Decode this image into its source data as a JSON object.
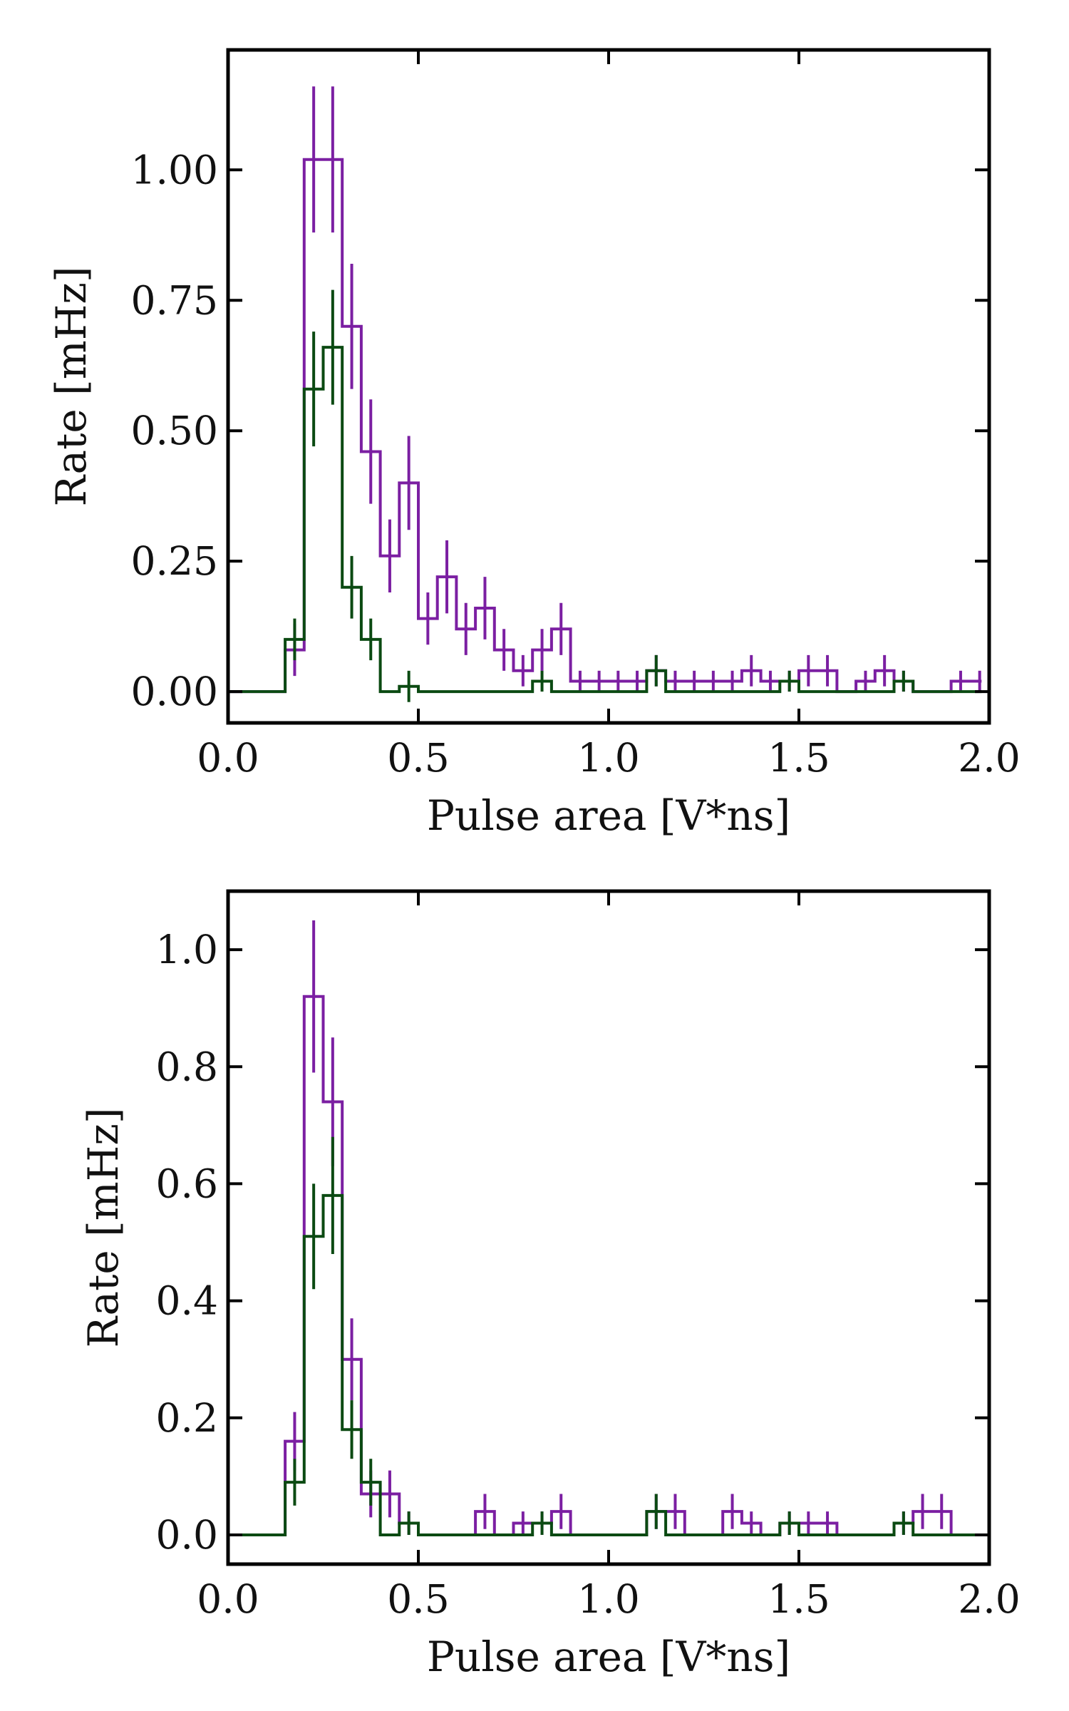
{
  "colors": {
    "purple": "#7b1fa2",
    "green": "#0b4a12",
    "frame": "#000000"
  },
  "chart_data": [
    {
      "type": "histogram-step",
      "title": "",
      "xlabel": "Pulse area [V*ns]",
      "ylabel": "Rate [mHz]",
      "xlim": [
        0.0,
        2.0
      ],
      "ylim": [
        -0.06,
        1.23
      ],
      "xticks": [
        0.0,
        0.5,
        1.0,
        1.5,
        2.0
      ],
      "xtick_labels": [
        "0.0",
        "0.5",
        "1.0",
        "1.5",
        "2.0"
      ],
      "yticks": [
        0.0,
        0.25,
        0.5,
        0.75,
        1.0
      ],
      "ytick_labels": [
        "0.00",
        "0.25",
        "0.50",
        "0.75",
        "1.00"
      ],
      "series": [
        {
          "name": "purple",
          "color": "#7b1fa2",
          "bins": [
            [
              0.0,
              0.15,
              0.0
            ],
            [
              0.15,
              0.2,
              0.08
            ],
            [
              0.2,
              0.3,
              1.02
            ],
            [
              0.3,
              0.35,
              0.7
            ],
            [
              0.35,
              0.4,
              0.46
            ],
            [
              0.4,
              0.45,
              0.26
            ],
            [
              0.45,
              0.5,
              0.4
            ],
            [
              0.5,
              0.55,
              0.14
            ],
            [
              0.55,
              0.6,
              0.22
            ],
            [
              0.6,
              0.65,
              0.12
            ],
            [
              0.65,
              0.7,
              0.16
            ],
            [
              0.7,
              0.75,
              0.08
            ],
            [
              0.75,
              0.8,
              0.04
            ],
            [
              0.8,
              0.85,
              0.08
            ],
            [
              0.85,
              0.9,
              0.12
            ],
            [
              0.9,
              1.1,
              0.02
            ],
            [
              1.1,
              1.15,
              0.04
            ],
            [
              1.15,
              1.35,
              0.02
            ],
            [
              1.35,
              1.4,
              0.04
            ],
            [
              1.4,
              1.45,
              0.02
            ],
            [
              1.45,
              1.5,
              0.02
            ],
            [
              1.5,
              1.6,
              0.04
            ],
            [
              1.6,
              1.65,
              0.0
            ],
            [
              1.65,
              1.7,
              0.02
            ],
            [
              1.7,
              1.75,
              0.04
            ],
            [
              1.75,
              1.8,
              0.02
            ],
            [
              1.8,
              1.9,
              0.0
            ],
            [
              1.9,
              1.98,
              0.02
            ]
          ],
          "errorbars": [
            [
              0.175,
              0.08,
              0.05
            ],
            [
              0.225,
              1.02,
              0.14
            ],
            [
              0.275,
              1.02,
              0.14
            ],
            [
              0.325,
              0.7,
              0.12
            ],
            [
              0.375,
              0.46,
              0.1
            ],
            [
              0.425,
              0.26,
              0.07
            ],
            [
              0.475,
              0.4,
              0.09
            ],
            [
              0.525,
              0.14,
              0.05
            ],
            [
              0.575,
              0.22,
              0.07
            ],
            [
              0.625,
              0.12,
              0.05
            ],
            [
              0.675,
              0.16,
              0.06
            ],
            [
              0.725,
              0.08,
              0.04
            ],
            [
              0.775,
              0.04,
              0.03
            ],
            [
              0.825,
              0.08,
              0.04
            ],
            [
              0.875,
              0.12,
              0.05
            ],
            [
              0.925,
              0.02,
              0.02
            ],
            [
              0.975,
              0.02,
              0.02
            ],
            [
              1.025,
              0.02,
              0.02
            ],
            [
              1.075,
              0.02,
              0.02
            ],
            [
              1.125,
              0.04,
              0.03
            ],
            [
              1.175,
              0.02,
              0.02
            ],
            [
              1.225,
              0.02,
              0.02
            ],
            [
              1.275,
              0.02,
              0.02
            ],
            [
              1.325,
              0.02,
              0.02
            ],
            [
              1.375,
              0.04,
              0.03
            ],
            [
              1.425,
              0.02,
              0.02
            ],
            [
              1.475,
              0.02,
              0.02
            ],
            [
              1.525,
              0.04,
              0.03
            ],
            [
              1.575,
              0.04,
              0.03
            ],
            [
              1.675,
              0.02,
              0.02
            ],
            [
              1.725,
              0.04,
              0.03
            ],
            [
              1.775,
              0.02,
              0.02
            ],
            [
              1.925,
              0.02,
              0.02
            ],
            [
              1.975,
              0.02,
              0.02
            ]
          ]
        },
        {
          "name": "green",
          "color": "#0b4a12",
          "bins": [
            [
              0.0,
              0.15,
              0.0
            ],
            [
              0.15,
              0.2,
              0.1
            ],
            [
              0.2,
              0.25,
              0.58
            ],
            [
              0.25,
              0.3,
              0.66
            ],
            [
              0.3,
              0.35,
              0.2
            ],
            [
              0.35,
              0.4,
              0.1
            ],
            [
              0.4,
              0.45,
              0.0
            ],
            [
              0.45,
              0.5,
              0.01
            ],
            [
              0.5,
              0.8,
              0.0
            ],
            [
              0.8,
              0.85,
              0.02
            ],
            [
              0.85,
              1.1,
              0.0
            ],
            [
              1.1,
              1.15,
              0.04
            ],
            [
              1.15,
              1.45,
              0.0
            ],
            [
              1.45,
              1.5,
              0.02
            ],
            [
              1.5,
              1.75,
              0.0
            ],
            [
              1.75,
              1.8,
              0.02
            ],
            [
              1.8,
              1.98,
              0.0
            ]
          ],
          "errorbars": [
            [
              0.175,
              0.1,
              0.04
            ],
            [
              0.225,
              0.58,
              0.11
            ],
            [
              0.275,
              0.66,
              0.11
            ],
            [
              0.325,
              0.2,
              0.06
            ],
            [
              0.375,
              0.1,
              0.04
            ],
            [
              0.475,
              0.01,
              0.03
            ],
            [
              0.825,
              0.02,
              0.02
            ],
            [
              1.125,
              0.04,
              0.03
            ],
            [
              1.475,
              0.02,
              0.02
            ],
            [
              1.775,
              0.02,
              0.02
            ]
          ]
        }
      ]
    },
    {
      "type": "histogram-step",
      "title": "",
      "xlabel": "Pulse area [V*ns]",
      "ylabel": "Rate [mHz]",
      "xlim": [
        0.0,
        2.0
      ],
      "ylim": [
        -0.05,
        1.1
      ],
      "xticks": [
        0.0,
        0.5,
        1.0,
        1.5,
        2.0
      ],
      "xtick_labels": [
        "0.0",
        "0.5",
        "1.0",
        "1.5",
        "2.0"
      ],
      "yticks": [
        0.0,
        0.2,
        0.4,
        0.6,
        0.8,
        1.0
      ],
      "ytick_labels": [
        "0.0",
        "0.2",
        "0.4",
        "0.6",
        "0.8",
        "1.0"
      ],
      "series": [
        {
          "name": "purple",
          "color": "#7b1fa2",
          "bins": [
            [
              0.0,
              0.15,
              0.0
            ],
            [
              0.15,
              0.2,
              0.16
            ],
            [
              0.2,
              0.25,
              0.92
            ],
            [
              0.25,
              0.3,
              0.74
            ],
            [
              0.3,
              0.35,
              0.3
            ],
            [
              0.35,
              0.45,
              0.07
            ],
            [
              0.45,
              0.5,
              0.02
            ],
            [
              0.5,
              0.65,
              0.0
            ],
            [
              0.65,
              0.7,
              0.04
            ],
            [
              0.7,
              0.75,
              0.0
            ],
            [
              0.75,
              0.85,
              0.02
            ],
            [
              0.85,
              0.9,
              0.04
            ],
            [
              0.9,
              1.1,
              0.0
            ],
            [
              1.1,
              1.2,
              0.04
            ],
            [
              1.2,
              1.3,
              0.0
            ],
            [
              1.3,
              1.35,
              0.04
            ],
            [
              1.35,
              1.4,
              0.02
            ],
            [
              1.4,
              1.45,
              0.0
            ],
            [
              1.45,
              1.6,
              0.02
            ],
            [
              1.6,
              1.75,
              0.0
            ],
            [
              1.75,
              1.8,
              0.02
            ],
            [
              1.8,
              1.9,
              0.04
            ],
            [
              1.9,
              1.98,
              0.0
            ]
          ],
          "errorbars": [
            [
              0.175,
              0.16,
              0.05
            ],
            [
              0.225,
              0.92,
              0.13
            ],
            [
              0.275,
              0.74,
              0.11
            ],
            [
              0.325,
              0.3,
              0.07
            ],
            [
              0.375,
              0.07,
              0.04
            ],
            [
              0.425,
              0.07,
              0.04
            ],
            [
              0.475,
              0.02,
              0.02
            ],
            [
              0.675,
              0.04,
              0.03
            ],
            [
              0.775,
              0.02,
              0.02
            ],
            [
              0.825,
              0.02,
              0.02
            ],
            [
              0.875,
              0.04,
              0.03
            ],
            [
              1.125,
              0.04,
              0.03
            ],
            [
              1.175,
              0.04,
              0.03
            ],
            [
              1.325,
              0.04,
              0.03
            ],
            [
              1.375,
              0.02,
              0.02
            ],
            [
              1.475,
              0.02,
              0.02
            ],
            [
              1.525,
              0.02,
              0.02
            ],
            [
              1.575,
              0.02,
              0.02
            ],
            [
              1.775,
              0.02,
              0.02
            ],
            [
              1.825,
              0.04,
              0.03
            ],
            [
              1.875,
              0.04,
              0.03
            ]
          ]
        },
        {
          "name": "green",
          "color": "#0b4a12",
          "bins": [
            [
              0.0,
              0.15,
              0.0
            ],
            [
              0.15,
              0.2,
              0.09
            ],
            [
              0.2,
              0.25,
              0.51
            ],
            [
              0.25,
              0.3,
              0.58
            ],
            [
              0.3,
              0.35,
              0.18
            ],
            [
              0.35,
              0.4,
              0.09
            ],
            [
              0.4,
              0.45,
              0.0
            ],
            [
              0.45,
              0.5,
              0.02
            ],
            [
              0.5,
              0.8,
              0.0
            ],
            [
              0.8,
              0.85,
              0.02
            ],
            [
              0.85,
              1.1,
              0.0
            ],
            [
              1.1,
              1.15,
              0.04
            ],
            [
              1.15,
              1.45,
              0.0
            ],
            [
              1.45,
              1.5,
              0.02
            ],
            [
              1.5,
              1.75,
              0.0
            ],
            [
              1.75,
              1.8,
              0.02
            ],
            [
              1.8,
              1.98,
              0.0
            ]
          ],
          "errorbars": [
            [
              0.175,
              0.09,
              0.04
            ],
            [
              0.225,
              0.51,
              0.09
            ],
            [
              0.275,
              0.58,
              0.1
            ],
            [
              0.325,
              0.18,
              0.05
            ],
            [
              0.375,
              0.09,
              0.04
            ],
            [
              0.475,
              0.02,
              0.02
            ],
            [
              0.825,
              0.02,
              0.02
            ],
            [
              1.125,
              0.04,
              0.03
            ],
            [
              1.475,
              0.02,
              0.02
            ],
            [
              1.775,
              0.02,
              0.02
            ]
          ]
        }
      ]
    }
  ]
}
